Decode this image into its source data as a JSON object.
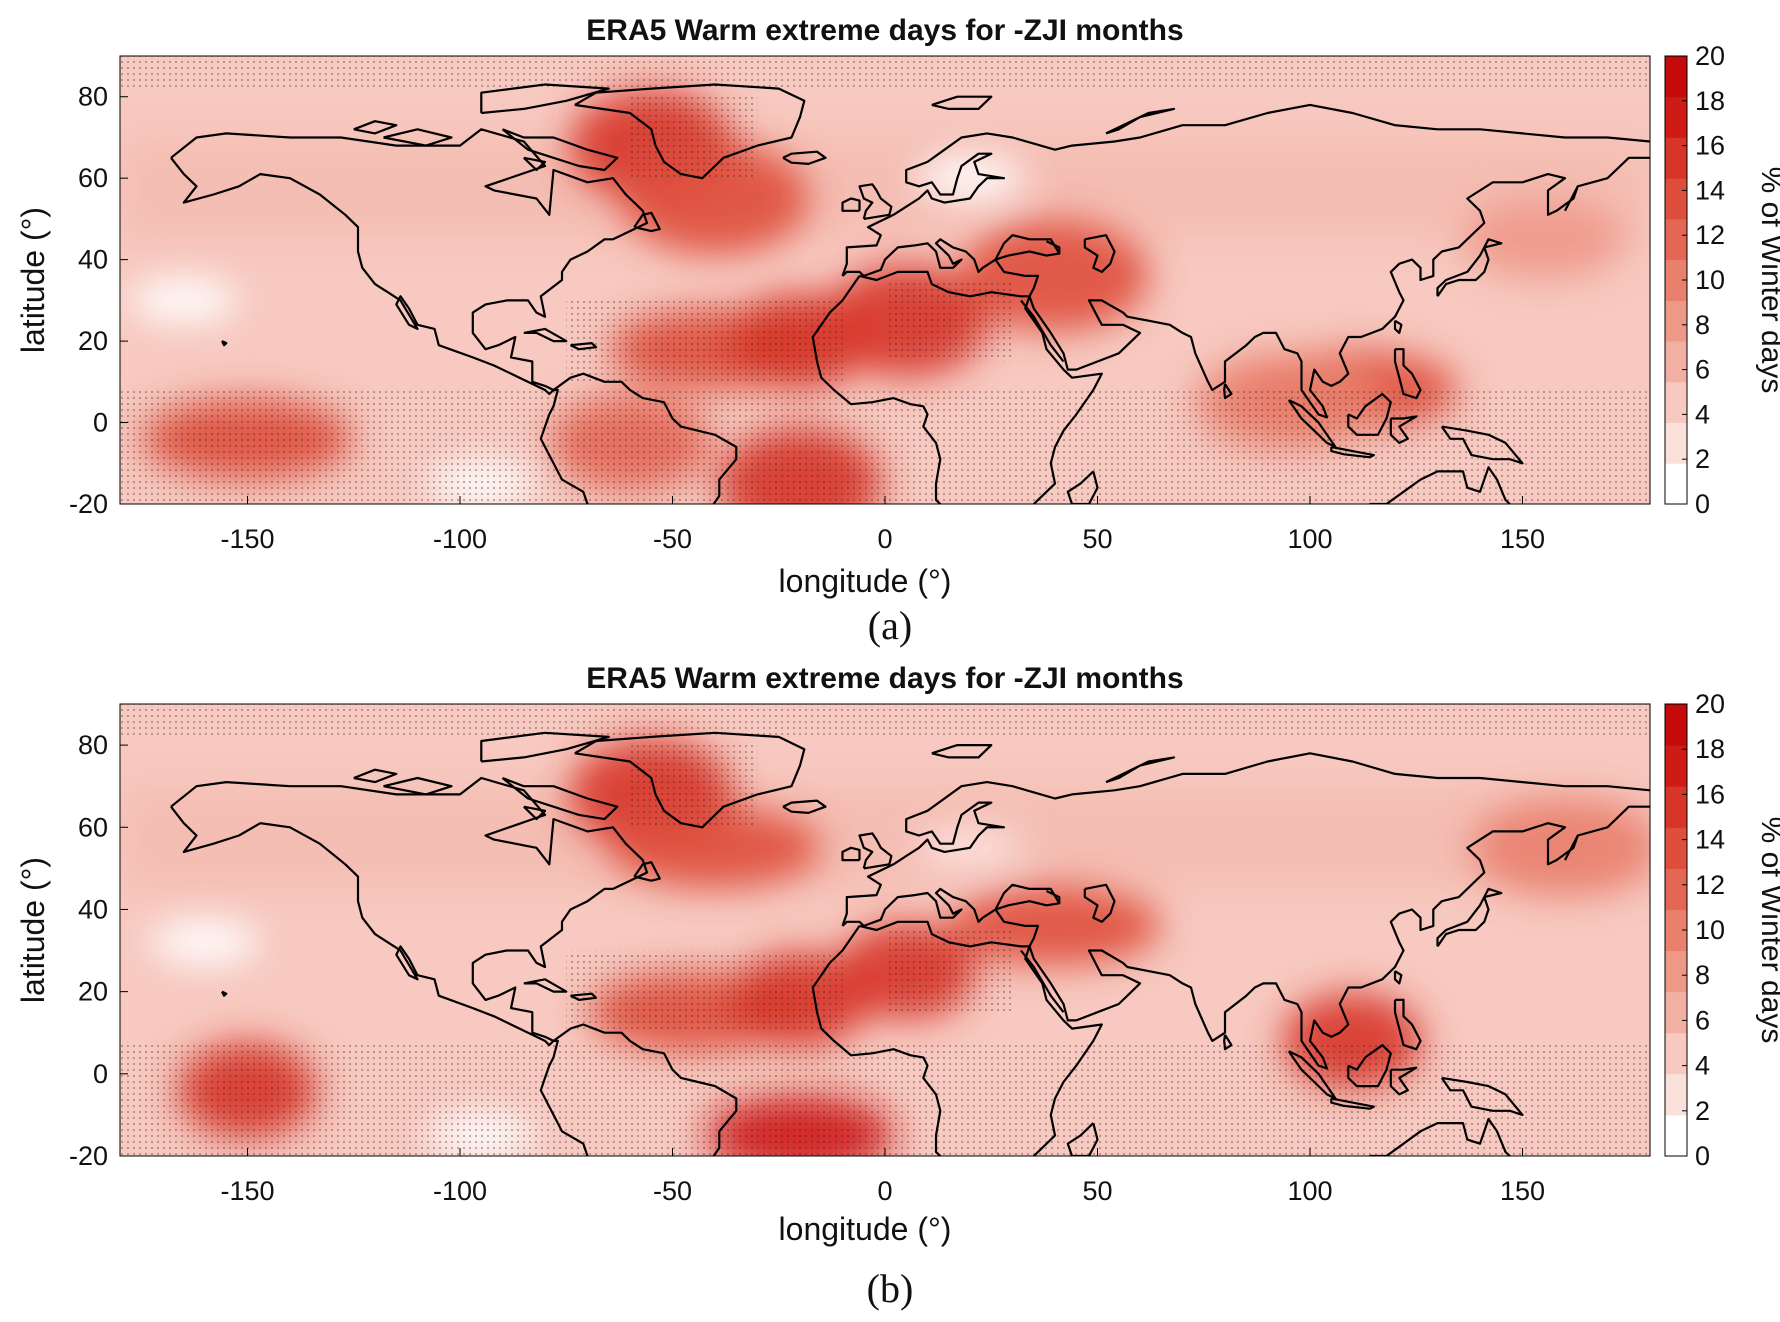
{
  "figure": {
    "panels": [
      {
        "id": "a",
        "title": "ERA5 Warm extreme days for -ZJI months",
        "caption": "(a)",
        "xlabel": "longitude (°)",
        "ylabel": "latitude (°)",
        "colorbar_label": "% of Winter days"
      },
      {
        "id": "b",
        "title": "ERA5 Warm extreme days for -ZJI months",
        "caption": "(b)",
        "xlabel": "longitude (°)",
        "ylabel": "latitude (°)",
        "colorbar_label": "% of Winter days"
      }
    ]
  },
  "chart_data": [
    {
      "type": "heatmap",
      "title": "ERA5 Warm extreme days for -ZJI months",
      "xlabel": "longitude (°)",
      "ylabel": "latitude (°)",
      "xlim": [
        -180,
        180
      ],
      "ylim": [
        -20,
        90
      ],
      "xticks": [
        -150,
        -100,
        -50,
        0,
        50,
        100,
        150
      ],
      "yticks": [
        -20,
        0,
        20,
        40,
        60,
        80
      ],
      "colorbar": {
        "label": "% of Winter days",
        "range": [
          0,
          20
        ],
        "ticks": [
          0,
          2,
          4,
          6,
          8,
          10,
          12,
          14,
          16,
          18,
          20
        ],
        "colors": [
          "#ffffff",
          "#fbe1dc",
          "#f7c9c0",
          "#f2b0a4",
          "#ee9888",
          "#e97f6d",
          "#e46654",
          "#de4e3c",
          "#d73527",
          "#cf1b16",
          "#c40a0a"
        ]
      },
      "hotspots": [
        {
          "lon": -55,
          "lat": 68,
          "value": 17,
          "region": "Greenland"
        },
        {
          "lon": -40,
          "lat": 55,
          "value": 14
        },
        {
          "lon": -40,
          "lat": 18,
          "value": 15
        },
        {
          "lon": -20,
          "lat": 20,
          "value": 16
        },
        {
          "lon": 5,
          "lat": 25,
          "value": 17,
          "region": "Sahara"
        },
        {
          "lon": 40,
          "lat": 36,
          "value": 14
        },
        {
          "lon": -150,
          "lat": -4,
          "value": 15
        },
        {
          "lon": -60,
          "lat": -5,
          "value": 13
        },
        {
          "lon": -20,
          "lat": -15,
          "value": 17
        },
        {
          "lon": 110,
          "lat": 8,
          "value": 15
        },
        {
          "lon": 95,
          "lat": 5,
          "value": 10
        },
        {
          "lon": 155,
          "lat": 45,
          "value": 9
        }
      ],
      "low_regions": [
        {
          "lon": -95,
          "lat": -15,
          "value": 0
        },
        {
          "lon": 20,
          "lat": 60,
          "value": 0
        },
        {
          "lon": -165,
          "lat": 30,
          "value": 1
        }
      ]
    },
    {
      "type": "heatmap",
      "title": "ERA5 Warm extreme days for -ZJI months",
      "xlabel": "longitude (°)",
      "ylabel": "latitude (°)",
      "xlim": [
        -180,
        180
      ],
      "ylim": [
        -20,
        90
      ],
      "xticks": [
        -150,
        -100,
        -50,
        0,
        50,
        100,
        150
      ],
      "yticks": [
        -20,
        0,
        20,
        40,
        60,
        80
      ],
      "colorbar": {
        "label": "% of Winter days",
        "range": [
          0,
          20
        ],
        "ticks": [
          0,
          2,
          4,
          6,
          8,
          10,
          12,
          14,
          16,
          18,
          20
        ],
        "colors": [
          "#ffffff",
          "#fbe1dc",
          "#f7c9c0",
          "#f2b0a4",
          "#ee9888",
          "#e97f6d",
          "#e46654",
          "#de4e3c",
          "#d73527",
          "#cf1b16",
          "#c40a0a"
        ]
      },
      "hotspots": [
        {
          "lon": -55,
          "lat": 68,
          "value": 17,
          "region": "Greenland"
        },
        {
          "lon": -40,
          "lat": 55,
          "value": 15
        },
        {
          "lon": -45,
          "lat": 15,
          "value": 15
        },
        {
          "lon": -20,
          "lat": 18,
          "value": 16
        },
        {
          "lon": 5,
          "lat": 25,
          "value": 16,
          "region": "Sahara"
        },
        {
          "lon": 40,
          "lat": 36,
          "value": 15
        },
        {
          "lon": -150,
          "lat": -4,
          "value": 16
        },
        {
          "lon": -20,
          "lat": -15,
          "value": 18
        },
        {
          "lon": 110,
          "lat": 8,
          "value": 16
        },
        {
          "lon": 160,
          "lat": 55,
          "value": 10
        }
      ],
      "low_regions": [
        {
          "lon": -95,
          "lat": -15,
          "value": 1
        },
        {
          "lon": 20,
          "lat": 55,
          "value": 2
        },
        {
          "lon": -160,
          "lat": 32,
          "value": 0
        }
      ]
    }
  ]
}
